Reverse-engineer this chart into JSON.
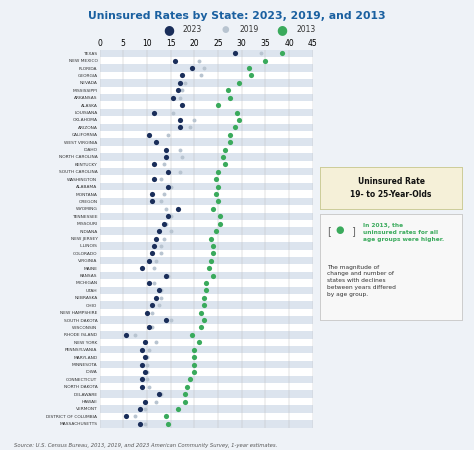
{
  "title": "Uninsured Rates by State: 2023, 2019, and 2013",
  "source": "Source: U.S. Census Bureau, 2013, 2019, and 2023 American Community Survey, 1-year estimates.",
  "xlim": [
    0,
    45
  ],
  "xticks": [
    0,
    5,
    10,
    15,
    20,
    25,
    30,
    35,
    40,
    45
  ],
  "states": [
    "TEXAS",
    "NEW MEXICO",
    "FLORIDA",
    "GEORGIA",
    "NEVADA",
    "MISSISSIPPI",
    "ARKANSAS",
    "ALASKA",
    "LOUISIANA",
    "OKLAHOMA",
    "ARIZONA",
    "CALIFORNIA",
    "WEST VIRGINIA",
    "IDAHO",
    "NORTH CAROLINA",
    "KENTUCKY",
    "SOUTH CAROLINA",
    "WASHINGTON",
    "ALABAMA",
    "MONTANA",
    "OREGON",
    "WYOMING",
    "TENNESSEE",
    "MISSOURI",
    "INDIANA",
    "NEW JERSEY",
    "ILLINOIS",
    "COLORADO",
    "VIRGINIA",
    "MAINE",
    "KANSAS",
    "MICHIGAN",
    "UTAH",
    "NEBRASKA",
    "OHIO",
    "NEW HAMPSHIRE",
    "SOUTH DAKOTA",
    "WISCONSIN",
    "RHODE ISLAND",
    "NEW YORK",
    "PENNSYLVANIA",
    "MARYLAND",
    "MINNESOTA",
    "IOWA",
    "CONNECTICUT",
    "NORTH DAKOTA",
    "DELAWARE",
    "HAWAII",
    "VERMONT",
    "DISTRICT OF COLUMBIA",
    "MASSACHUSETTS"
  ],
  "data_2023": [
    28.5,
    16.0,
    19.5,
    17.5,
    17.0,
    16.5,
    15.5,
    17.5,
    11.5,
    17.0,
    17.0,
    10.5,
    12.0,
    14.0,
    14.0,
    11.5,
    14.5,
    11.5,
    14.5,
    11.0,
    11.0,
    16.5,
    14.5,
    13.5,
    12.5,
    12.0,
    11.5,
    11.0,
    10.5,
    9.0,
    14.0,
    10.5,
    12.5,
    12.0,
    11.0,
    10.0,
    14.0,
    10.5,
    5.5,
    9.5,
    9.0,
    9.5,
    9.0,
    9.5,
    9.0,
    9.0,
    12.5,
    9.5,
    8.5,
    5.5,
    8.5
  ],
  "data_2019": [
    34.0,
    21.0,
    22.0,
    21.5,
    18.0,
    17.5,
    17.0,
    17.5,
    15.5,
    20.0,
    19.0,
    14.5,
    12.0,
    17.0,
    17.5,
    13.5,
    17.0,
    13.0,
    15.0,
    13.5,
    13.0,
    14.0,
    15.0,
    14.0,
    15.0,
    13.5,
    13.0,
    13.0,
    12.0,
    11.5,
    14.5,
    11.5,
    13.0,
    13.0,
    12.5,
    11.0,
    15.0,
    11.0,
    7.5,
    12.0,
    10.5,
    10.0,
    10.0,
    10.0,
    10.0,
    10.5,
    13.0,
    12.0,
    9.5,
    7.5,
    9.5
  ],
  "data_2013": [
    38.5,
    35.0,
    31.5,
    32.0,
    29.5,
    27.0,
    27.5,
    25.0,
    29.0,
    29.5,
    28.5,
    27.5,
    27.5,
    26.5,
    26.0,
    26.5,
    25.0,
    24.5,
    25.0,
    24.5,
    25.0,
    24.0,
    25.5,
    25.5,
    24.5,
    23.5,
    24.0,
    24.0,
    23.5,
    23.0,
    24.0,
    22.5,
    22.5,
    22.0,
    22.0,
    21.5,
    22.0,
    21.5,
    19.5,
    21.0,
    20.0,
    20.0,
    20.0,
    20.0,
    19.0,
    18.5,
    18.0,
    18.0,
    16.5,
    14.0,
    14.5
  ],
  "bg_color": "#eef2f7",
  "plot_bg": "#ffffff",
  "title_color": "#1a60a0",
  "color_2023": "#1a2e5a",
  "color_2019": "#b8c4d0",
  "color_2013": "#3aaa5c",
  "label_2023": "2023",
  "label_2019": "2019",
  "label_2013": "2013",
  "ann1_title": "Uninsured Rate\n19- to 25-Year-Olds",
  "ann1_bgcolor": "#f5f0d8",
  "ann2_green": "In 2013, the\nuninsured rates for all\nage groups were higher.",
  "ann2_black": "The magnitude of\nchange and number of\nstates with declines\nbetween years differed\nby age group.",
  "ann2_bgcolor": "#f8f8f8",
  "source_text": "Source: U.S. Census Bureau, 2013, 2019, and 2023 American Community Survey, 1-year estimates."
}
